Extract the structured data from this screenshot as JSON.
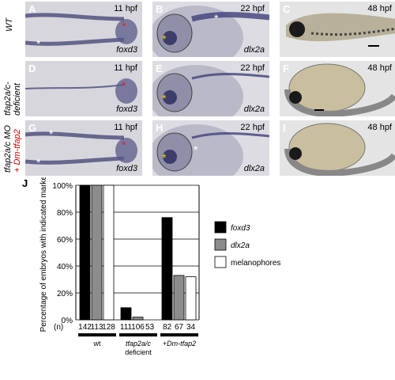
{
  "rows": [
    {
      "label": "WT"
    },
    {
      "label_a": "tfap2a/c-",
      "label_b": "deficient"
    },
    {
      "label_a": "tfap2a/c MO",
      "label_b": "+ Dm-tfap2"
    }
  ],
  "panels": [
    {
      "letter": "A",
      "stage": "11 hpf",
      "gene": "foxd3"
    },
    {
      "letter": "B",
      "stage": "22 hpf",
      "gene": "dlx2a"
    },
    {
      "letter": "C",
      "stage": "48 hpf",
      "gene": ""
    },
    {
      "letter": "D",
      "stage": "11 hpf",
      "gene": "foxd3"
    },
    {
      "letter": "E",
      "stage": "22 hpf",
      "gene": "dlx2a"
    },
    {
      "letter": "F",
      "stage": "48 hpf",
      "gene": ""
    },
    {
      "letter": "G",
      "stage": "11 hpf",
      "gene": "foxd3"
    },
    {
      "letter": "H",
      "stage": "22 hpf",
      "gene": "dlx2a"
    },
    {
      "letter": "I",
      "stage": "48 hpf",
      "gene": ""
    }
  ],
  "chart_title": "J",
  "chart_data": {
    "type": "bar",
    "ylabel": "Percentage of embryos with indicated marker",
    "ylim": [
      0,
      100
    ],
    "yticks": [
      "0%",
      "20%",
      "40%",
      "60%",
      "80%",
      "100%"
    ],
    "groups": [
      {
        "label": "wt",
        "label_b": "",
        "n": [
          "142",
          "113",
          "128"
        ],
        "values": [
          100,
          100,
          100
        ]
      },
      {
        "label": "tfap2a/c",
        "label_b": "deficient",
        "n": [
          "111",
          "106",
          "53"
        ],
        "values": [
          9,
          2,
          0
        ]
      },
      {
        "label": "+Dm-tfap2",
        "label_b": "",
        "n": [
          "82",
          "67",
          "34"
        ],
        "values": [
          76,
          33,
          32
        ]
      }
    ],
    "n_prefix": "(n)",
    "series": [
      {
        "name": "foxd3",
        "color": "#000000"
      },
      {
        "name": "dlx2a",
        "color": "#8c8c8c"
      },
      {
        "name": "melanophores",
        "color": "#ffffff"
      }
    ],
    "legend_position": "right"
  }
}
